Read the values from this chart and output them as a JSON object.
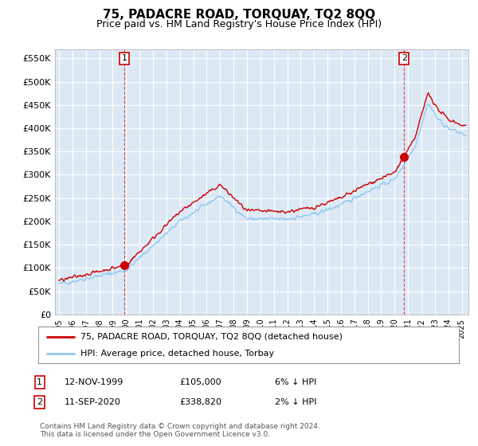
{
  "title": "75, PADACRE ROAD, TORQUAY, TQ2 8QQ",
  "subtitle": "Price paid vs. HM Land Registry's House Price Index (HPI)",
  "ylabel_ticks": [
    "£0",
    "£50K",
    "£100K",
    "£150K",
    "£200K",
    "£250K",
    "£300K",
    "£350K",
    "£400K",
    "£450K",
    "£500K",
    "£550K"
  ],
  "ytick_values": [
    0,
    50000,
    100000,
    150000,
    200000,
    250000,
    300000,
    350000,
    400000,
    450000,
    500000,
    550000
  ],
  "ylim": [
    0,
    570000
  ],
  "xlim_start": 1994.7,
  "xlim_end": 2025.5,
  "sale1_year": 1999.87,
  "sale1_price": 105000,
  "sale2_year": 2020.71,
  "sale2_price": 338820,
  "hpi_color": "#90c8f0",
  "price_color": "#cc0000",
  "marker_color": "#cc0000",
  "background_color": "#ffffff",
  "plot_bg_color": "#dce9f5",
  "grid_color": "#ffffff",
  "legend_label_red": "75, PADACRE ROAD, TORQUAY, TQ2 8QQ (detached house)",
  "legend_label_blue": "HPI: Average price, detached house, Torbay",
  "annot1_date": "12-NOV-1999",
  "annot1_price": "£105,000",
  "annot1_hpi": "6% ↓ HPI",
  "annot2_date": "11-SEP-2020",
  "annot2_price": "£338,820",
  "annot2_hpi": "2% ↓ HPI",
  "footnote": "Contains HM Land Registry data © Crown copyright and database right 2024.\nThis data is licensed under the Open Government Licence v3.0.",
  "title_fontsize": 11,
  "subtitle_fontsize": 9
}
